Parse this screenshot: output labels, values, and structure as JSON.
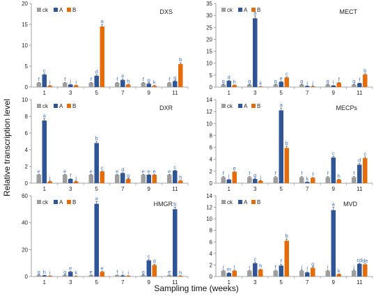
{
  "figure": {
    "ylabel": "Relative transcription level",
    "xlabel": "Sampling time (weeks)"
  },
  "colors": {
    "ck": "#9e9e9e",
    "A": "#2f5597",
    "B": "#e46c0a",
    "axis": "#888888",
    "letters": "#3a6fc4"
  },
  "chart_data": [
    {
      "type": "bar",
      "title": "DXS",
      "legend_position": "top-left",
      "categories": [
        "1",
        "3",
        "5",
        "7",
        "9",
        "11"
      ],
      "ylim": [
        0,
        20
      ],
      "yticks": [
        0,
        5,
        10,
        15,
        20
      ],
      "series": [
        {
          "name": "ck",
          "values": [
            1,
            1,
            1,
            1,
            1,
            1
          ],
          "errors": [
            0.1,
            0.1,
            0.1,
            0.1,
            0.1,
            0.1
          ],
          "letters": [
            "f",
            "f",
            "f",
            "f",
            "f",
            "f"
          ]
        },
        {
          "name": "A",
          "values": [
            3,
            0.6,
            2.7,
            1.7,
            0.8,
            1.4
          ],
          "errors": [
            0.2,
            0.1,
            0.2,
            0.2,
            0.1,
            0.1
          ],
          "letters": [
            "c",
            "i",
            "d",
            "e",
            "g",
            "g"
          ]
        },
        {
          "name": "B",
          "values": [
            0.3,
            0.4,
            14.5,
            0.6,
            0.3,
            5.5
          ],
          "errors": [
            0.1,
            0.1,
            0.5,
            0.1,
            0.1,
            0.3
          ],
          "letters": [
            "i",
            "i",
            "a",
            "h",
            "k",
            "b"
          ]
        }
      ]
    },
    {
      "type": "bar",
      "title": "MECT",
      "legend_position": "top-left",
      "categories": [
        "1",
        "3",
        "5",
        "7",
        "9",
        "11"
      ],
      "ylim": [
        0,
        35
      ],
      "yticks": [
        0,
        5,
        10,
        15,
        20,
        25,
        30,
        35
      ],
      "series": [
        {
          "name": "ck",
          "values": [
            1,
            1,
            1,
            1,
            1,
            1
          ],
          "errors": [
            0.1,
            0.1,
            0.1,
            0.1,
            0.1,
            0.1
          ],
          "letters": [
            "g",
            "g",
            "g",
            "g",
            "g",
            "g"
          ]
        },
        {
          "name": "A",
          "values": [
            2.6,
            28.8,
            2.2,
            0.4,
            0.6,
            1.6
          ],
          "errors": [
            0.2,
            1.0,
            0.2,
            0.1,
            0.1,
            0.1
          ],
          "letters": [
            "d",
            "a",
            "e",
            "j",
            "i",
            "f"
          ]
        },
        {
          "name": "B",
          "values": [
            0.8,
            0.2,
            4,
            0.3,
            1.8,
            5.3
          ],
          "errors": [
            0.1,
            0.1,
            0.2,
            0.1,
            0.1,
            0.3
          ],
          "letters": [
            "h",
            "k",
            "c",
            "j",
            "f",
            "b"
          ]
        }
      ]
    },
    {
      "type": "bar",
      "title": "DXR",
      "legend_position": "top-left",
      "categories": [
        "1",
        "3",
        "5",
        "7",
        "9",
        "11"
      ],
      "ylim": [
        0,
        10
      ],
      "yticks": [
        0,
        2,
        4,
        6,
        8,
        10
      ],
      "series": [
        {
          "name": "ck",
          "values": [
            1,
            1,
            1,
            1,
            1,
            1
          ],
          "errors": [
            0.05,
            0.05,
            0.05,
            0.05,
            0.05,
            0.05
          ],
          "letters": [
            "e",
            "e",
            "e",
            "e",
            "e",
            "e"
          ]
        },
        {
          "name": "A",
          "values": [
            7.5,
            0.5,
            4.8,
            1.2,
            1,
            1.5
          ],
          "errors": [
            0.2,
            0.05,
            0.2,
            0.05,
            0.05,
            0.05
          ],
          "letters": [
            "a",
            "f",
            "b",
            "d",
            "e",
            "c"
          ]
        },
        {
          "name": "B",
          "values": [
            0.2,
            0.2,
            1.4,
            0.5,
            1,
            0.3
          ],
          "errors": [
            0.05,
            0.05,
            0.05,
            0.05,
            0.05,
            0.05
          ],
          "letters": [
            "j",
            "j",
            "c",
            "g",
            "e",
            "h"
          ]
        }
      ]
    },
    {
      "type": "bar",
      "title": "MECPs",
      "legend_position": "top-left",
      "categories": [
        "1",
        "3",
        "5",
        "7",
        "9",
        "11"
      ],
      "ylim": [
        0,
        14
      ],
      "yticks": [
        0,
        2,
        4,
        6,
        8,
        10,
        12,
        14
      ],
      "series": [
        {
          "name": "ck",
          "values": [
            1,
            1,
            1,
            1,
            1,
            1
          ],
          "errors": [
            0.1,
            0.1,
            0.1,
            0.1,
            0.1,
            0.1
          ],
          "letters": [
            "f",
            "f",
            "f",
            "f",
            "f",
            "f"
          ]
        },
        {
          "name": "A",
          "values": [
            0.6,
            0.7,
            12.2,
            0.2,
            4.3,
            3.1
          ],
          "errors": [
            0.1,
            0.1,
            0.4,
            0.05,
            0.2,
            0.2
          ],
          "letters": [
            "i",
            "g",
            "a",
            "k",
            "c",
            "d"
          ]
        },
        {
          "name": "B",
          "values": [
            1.9,
            0.4,
            5.9,
            0.9,
            0.6,
            4.2
          ],
          "errors": [
            0.1,
            0.05,
            0.3,
            0.05,
            0.05,
            0.2
          ],
          "letters": [
            "e",
            "j",
            "b",
            "f",
            "h",
            "c"
          ]
        }
      ]
    },
    {
      "type": "bar",
      "title": "HMGR",
      "legend_position": "top-left",
      "categories": [
        "1",
        "3",
        "5",
        "7",
        "9",
        "11"
      ],
      "ylim": [
        0,
        60
      ],
      "yticks": [
        0,
        20,
        40,
        60
      ],
      "series": [
        {
          "name": "ck",
          "values": [
            1,
            1,
            1,
            1,
            1,
            1
          ],
          "errors": [
            0.1,
            0.1,
            0.1,
            0.1,
            0.1,
            0.1
          ],
          "letters": [
            "g",
            "g",
            "e",
            "f",
            "g",
            "e"
          ]
        },
        {
          "name": "A",
          "values": [
            0.8,
            3.5,
            54,
            0.7,
            12,
            50
          ],
          "errors": [
            0.1,
            0.3,
            1.5,
            0.1,
            0.6,
            1.5
          ],
          "letters": [
            "h",
            "e",
            "a",
            "j",
            "c",
            "b"
          ]
        },
        {
          "name": "B",
          "values": [
            0.5,
            0.3,
            3.5,
            0.5,
            8.5,
            0.5
          ],
          "errors": [
            0.1,
            0.1,
            0.3,
            0.1,
            0.5,
            0.1
          ],
          "letters": [
            "i",
            "k",
            "e",
            "i",
            "d",
            "h"
          ]
        }
      ]
    },
    {
      "type": "bar",
      "title": "MVD",
      "legend_position": "top-left",
      "categories": [
        "1",
        "3",
        "5",
        "7",
        "9",
        "11"
      ],
      "ylim": [
        0,
        14
      ],
      "yticks": [
        0,
        2,
        4,
        6,
        8,
        10,
        12,
        14
      ],
      "series": [
        {
          "name": "ck",
          "values": [
            1,
            1,
            1,
            1,
            1,
            1
          ],
          "errors": [
            0.1,
            0.1,
            0.1,
            0.1,
            0.1,
            0.1
          ],
          "letters": [
            "i",
            "i",
            "f",
            "j",
            "i",
            "j"
          ]
        },
        {
          "name": "A",
          "values": [
            0.6,
            2.3,
            1.9,
            0.7,
            11.5,
            2.2
          ],
          "errors": [
            0.1,
            0.2,
            0.2,
            0.1,
            0.5,
            0.1
          ],
          "letters": [
            "m",
            "c",
            "f",
            "l",
            "a",
            "cd"
          ]
        },
        {
          "name": "B",
          "values": [
            1,
            1.2,
            6.2,
            1.5,
            0.4,
            2.1
          ],
          "errors": [
            0.1,
            0.1,
            0.3,
            0.1,
            0.05,
            0.1
          ],
          "letters": [
            "l",
            "h",
            "b",
            "g",
            "k",
            "de"
          ]
        }
      ]
    }
  ]
}
